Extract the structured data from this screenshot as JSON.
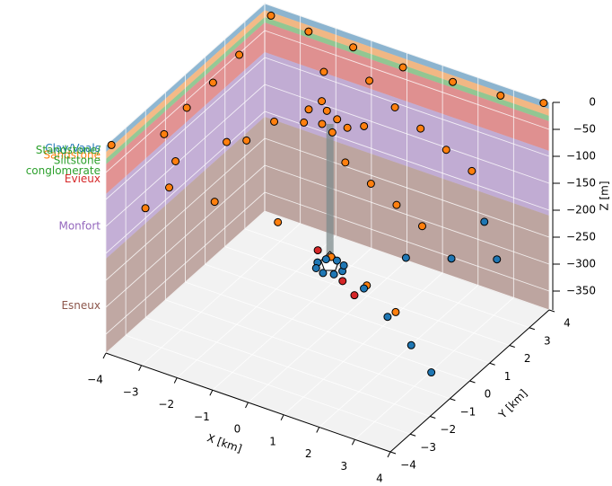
{
  "chart_data": {
    "type": "scatter3d",
    "xlabel": "X [km]",
    "ylabel": "Y [km]",
    "zlabel": "Z [m]",
    "xlim": [
      -4,
      4
    ],
    "ylim": [
      -4,
      4
    ],
    "zlim": [
      -385,
      0
    ],
    "xticks": [
      {
        "value": -4,
        "label": "−4"
      },
      {
        "value": -3,
        "label": "−3"
      },
      {
        "value": -2,
        "label": "−2"
      },
      {
        "value": -1,
        "label": "−1"
      },
      0,
      1,
      2,
      3,
      4
    ],
    "yticks": [
      {
        "value": -4,
        "label": "−4"
      },
      {
        "value": -3,
        "label": "−3"
      },
      {
        "value": -2,
        "label": "−2"
      },
      {
        "value": -1,
        "label": "−1"
      },
      0,
      1,
      2,
      3,
      4
    ],
    "zticks": [
      0,
      {
        "value": -50,
        "label": "−50"
      },
      {
        "value": -100,
        "label": "−100"
      },
      {
        "value": -150,
        "label": "−150"
      },
      {
        "value": -200,
        "label": "−200"
      },
      {
        "value": -250,
        "label": "−250"
      },
      {
        "value": -300,
        "label": "−300"
      },
      {
        "value": -350,
        "label": "−350"
      }
    ],
    "grid": true,
    "layers": [
      {
        "name": "Clay/Vaals",
        "color": "#1f77b4",
        "top": 0,
        "bottom": -12
      },
      {
        "name": "Sandstone",
        "color": "#ff7f0e",
        "top": -12,
        "bottom": -25
      },
      {
        "name": [
          "Standstone/",
          "Siltstone",
          "conglomerate"
        ],
        "color": "#2ca02c",
        "top": -25,
        "bottom": -35
      },
      {
        "name": "Evieux",
        "color": "#d62728",
        "top": -35,
        "bottom": -90
      },
      {
        "name": "Monfort",
        "color": "#9467bd",
        "top": -90,
        "bottom": -210
      },
      {
        "name": "Esneux",
        "color": "#8c564b",
        "top": -210,
        "bottom": -385
      }
    ],
    "well": {
      "x": -0.44,
      "y": 0.91,
      "top": -40,
      "bottom": -290
    },
    "series": [
      {
        "color": "#ff7f0e",
        "x": [
          -3.6,
          -2.6,
          -1.4,
          0,
          1.4,
          2.8,
          3.9,
          -3.9,
          -3.2,
          -3.4,
          -3.5,
          -3.6,
          -2.6,
          -2,
          -1.5,
          -1,
          -0.5,
          0.5,
          1.5,
          2.5,
          3.5,
          -1.2,
          -0.8,
          -0.4,
          -0.6,
          -0.2,
          0,
          0.3,
          -1,
          0.5,
          1.5,
          2.5,
          3.5,
          -2.5,
          -1.5,
          0,
          1.5,
          2.5,
          3.2,
          -3,
          -2,
          -1.5
        ],
        "y": [
          3.6,
          3.7,
          3.8,
          3.8,
          3.8,
          3.7,
          3.9,
          -3.9,
          -2.5,
          -1,
          0.5,
          2,
          -3,
          -1.5,
          0,
          1.5,
          3,
          2.5,
          2,
          1.5,
          1,
          1.2,
          1.4,
          1.2,
          0.8,
          0.6,
          1,
          1.3,
          0.6,
          0,
          -0.5,
          -1,
          -1.5,
          -3.5,
          -3,
          -2.5,
          -2.5,
          -2.5,
          -2.3,
          -3.8,
          -0.5,
          2.5
        ],
        "z": [
          0,
          -10,
          -15,
          -20,
          -15,
          -5,
          0,
          0,
          -10,
          -15,
          -20,
          -20,
          -30,
          -30,
          -30,
          -30,
          -30,
          -40,
          -40,
          -40,
          -40,
          -40,
          -40,
          -40,
          -40,
          -40,
          -40,
          -40,
          -40,
          -60,
          -60,
          -60,
          -60,
          -60,
          -80,
          -100,
          -130,
          -160,
          -200,
          -100,
          -60,
          -20
        ]
      },
      {
        "color": "#1f77b4",
        "x": [
          -0.09,
          -0.19,
          -0.44,
          -0.69,
          -0.79,
          -0.69,
          -0.44,
          -0.19,
          0.8,
          1.8,
          2.8,
          3.7,
          1.2,
          2.2,
          3.2,
          2.4
        ],
        "y": [
          0.91,
          1.16,
          1.26,
          1.16,
          0.91,
          0.66,
          0.56,
          0.66,
          0.4,
          -0.2,
          -0.8,
          -1.4,
          1.8,
          2.3,
          2.8,
          3.6
        ],
        "z": [
          -305,
          -305,
          -305,
          -305,
          -305,
          -305,
          -305,
          -305,
          -300,
          -310,
          -320,
          -330,
          -280,
          -275,
          -270,
          -245
        ]
      },
      {
        "color": "#d62728",
        "x": [
          -1.0,
          0.2,
          0.7
        ],
        "y": [
          1.3,
          0.4,
          0.1
        ],
        "z": [
          -300,
          -300,
          -305
        ]
      }
    ]
  }
}
